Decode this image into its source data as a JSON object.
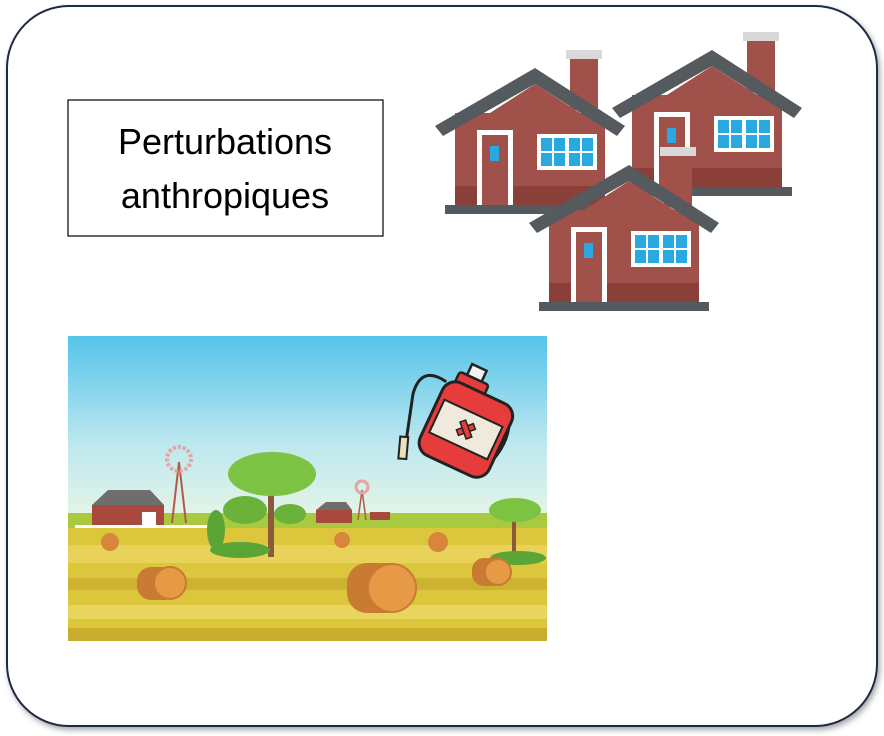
{
  "label": {
    "lines": [
      "Perturbations",
      "anthropiques"
    ]
  }
}
